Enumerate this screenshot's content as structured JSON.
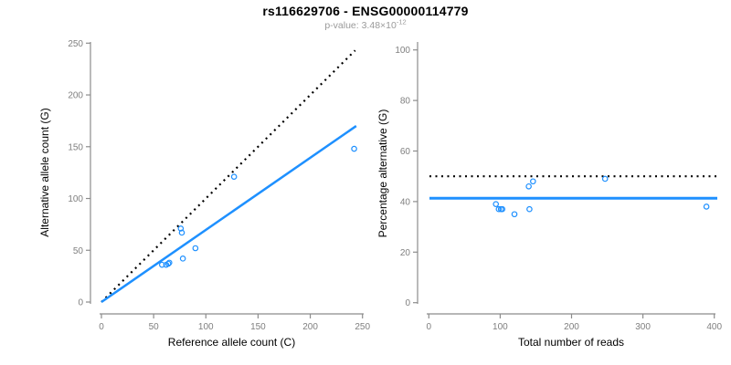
{
  "header": {
    "title": "rs116629706 - ENSG00000114779",
    "subtitle_label": "p-value:",
    "subtitle_value": "3.48×10",
    "subtitle_exponent": "-12"
  },
  "colors": {
    "accent_blue": "#1E90FF",
    "dotted_black": "#000000",
    "axis_line": "#8c8c8c",
    "tick_label": "#7f7f7f",
    "axis_title": "#000000",
    "background": "#ffffff"
  },
  "chart_data": [
    {
      "type": "scatter",
      "panel": "left",
      "xlabel": "Reference allele count (C)",
      "ylabel": "Alternative allele count (G)",
      "xlim": [
        0,
        250
      ],
      "ylim": [
        0,
        250
      ],
      "xticks": [
        0,
        50,
        100,
        150,
        200,
        250
      ],
      "yticks": [
        0,
        50,
        100,
        150,
        200,
        250
      ],
      "grid": false,
      "legend": false,
      "points": [
        [
          58,
          36
        ],
        [
          62,
          36
        ],
        [
          64,
          37
        ],
        [
          65,
          38
        ],
        [
          78,
          42
        ],
        [
          90,
          52
        ],
        [
          77,
          67
        ],
        [
          76,
          71
        ],
        [
          127,
          121
        ],
        [
          242,
          148
        ]
      ],
      "lines": [
        {
          "name": "identity-line",
          "style": "dotted",
          "color": "#000000",
          "from": [
            0,
            0
          ],
          "to": [
            243,
            243
          ]
        },
        {
          "name": "fit-line",
          "style": "solid",
          "color": "#1E90FF",
          "from": [
            0,
            0
          ],
          "to": [
            244,
            170
          ]
        }
      ]
    },
    {
      "type": "scatter",
      "panel": "right",
      "xlabel": "Total number of reads",
      "ylabel": "Percentage alternative (G)",
      "xlim": [
        0,
        400
      ],
      "ylim": [
        0,
        100
      ],
      "xticks": [
        0,
        100,
        200,
        300,
        400
      ],
      "yticks": [
        0,
        20,
        40,
        60,
        80,
        100
      ],
      "grid": false,
      "legend": false,
      "points": [
        [
          94,
          39
        ],
        [
          98,
          37
        ],
        [
          101,
          37
        ],
        [
          103,
          37
        ],
        [
          120,
          35
        ],
        [
          141,
          37
        ],
        [
          140,
          46
        ],
        [
          146,
          48
        ],
        [
          247,
          49
        ],
        [
          389,
          38
        ]
      ],
      "lines": [
        {
          "name": "expected-50-line",
          "style": "dotted",
          "color": "#000000",
          "y": 50
        },
        {
          "name": "mean-percentage-line",
          "style": "solid",
          "color": "#1E90FF",
          "y": 41.3
        }
      ]
    }
  ]
}
